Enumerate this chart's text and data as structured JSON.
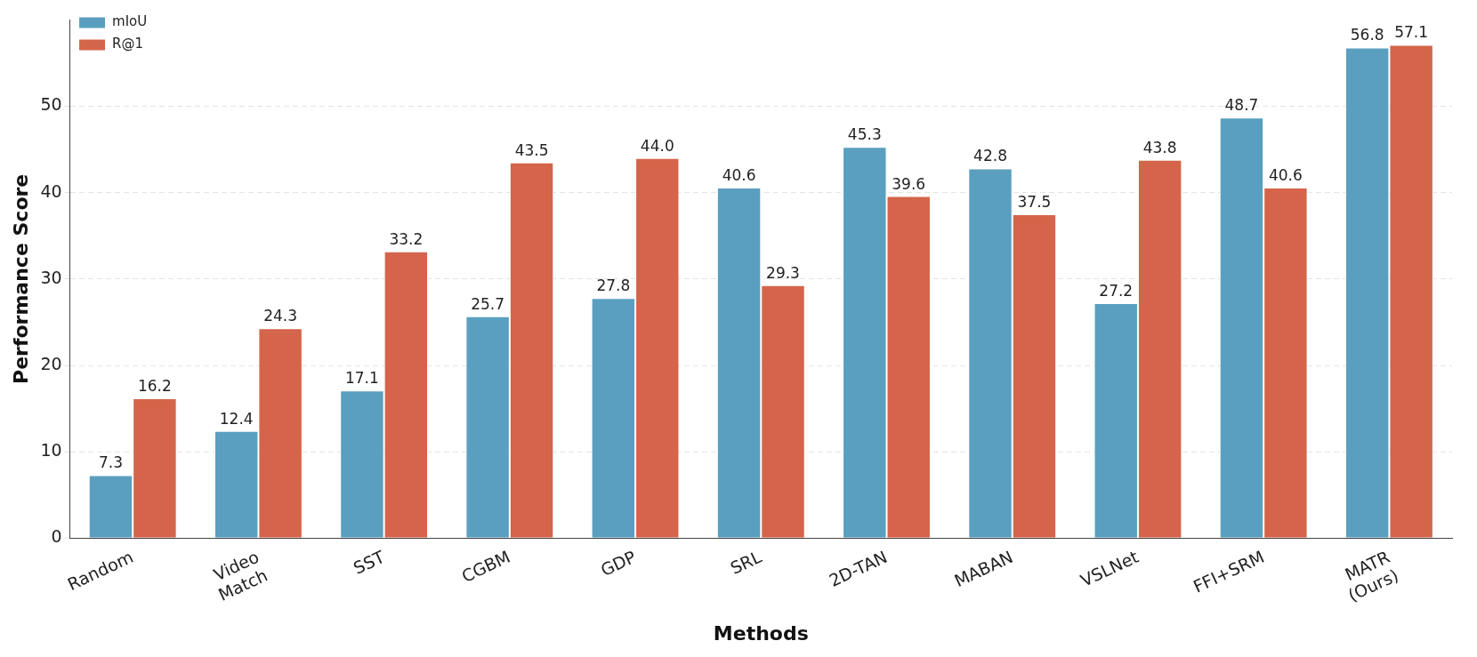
{
  "chart_data": {
    "type": "bar",
    "xlabel": "Methods",
    "ylabel": "Performance Score",
    "categories": [
      "Random",
      "Video\nMatch",
      "SST",
      "CGBM",
      "GDP",
      "SRL",
      "2D-TAN",
      "MABAN",
      "VSLNet",
      "FFI+SRM",
      "MATR\n(Ours)"
    ],
    "series": [
      {
        "name": "mIoU",
        "color": "#5a9fbf",
        "values": [
          7.3,
          12.4,
          17.1,
          25.7,
          27.8,
          40.6,
          45.3,
          42.8,
          27.2,
          48.7,
          56.8
        ],
        "value_labels": [
          "7.3",
          "12.4",
          "17.1",
          "25.7",
          "27.8",
          "40.6",
          "45.3",
          "42.8",
          "27.2",
          "48.7",
          "56.8"
        ]
      },
      {
        "name": "R@1",
        "color": "#d4654a",
        "values": [
          16.2,
          24.3,
          33.2,
          43.5,
          44.0,
          29.3,
          39.6,
          37.5,
          43.8,
          40.6,
          57.1
        ],
        "value_labels": [
          "16.2",
          "24.3",
          "33.2",
          "43.5",
          "44.0",
          "29.3",
          "39.6",
          "37.5",
          "43.8",
          "40.6",
          "57.1"
        ]
      }
    ],
    "ylim": [
      0,
      60
    ],
    "yticks": [
      0,
      10,
      20,
      30,
      40,
      50
    ],
    "grid": "y",
    "legend": "top left"
  }
}
